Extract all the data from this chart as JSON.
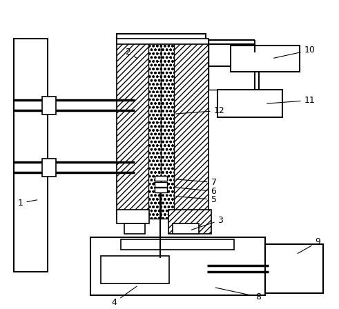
{
  "background_color": "#ffffff",
  "fig_width": 4.91,
  "fig_height": 4.48,
  "dpi": 100
}
